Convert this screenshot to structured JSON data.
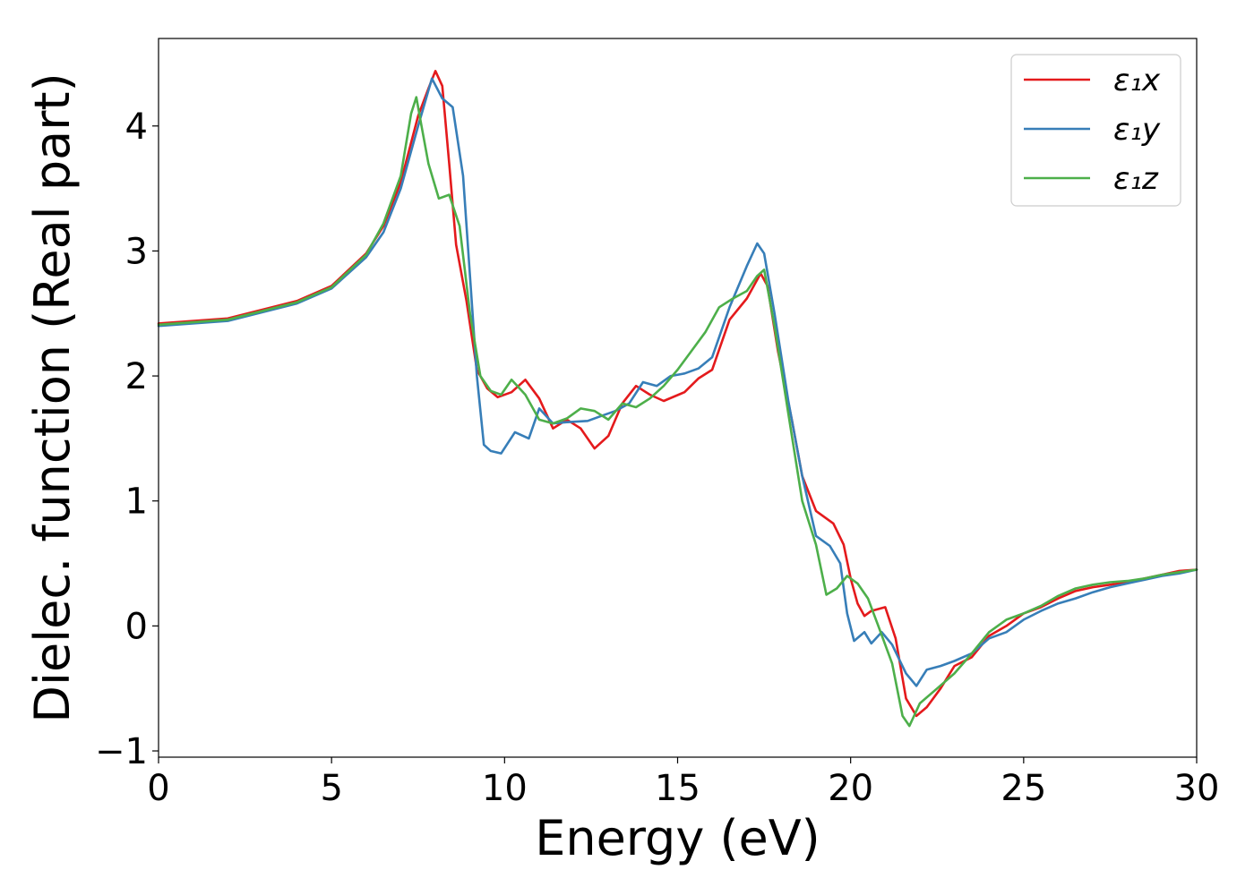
{
  "chart_data": {
    "type": "line",
    "title": "",
    "xlabel": "Energy (eV)",
    "ylabel": "Dielec. function (Real part)",
    "xlim": [
      0,
      30
    ],
    "ylim": [
      -1.05,
      4.7
    ],
    "xticks": [
      0,
      5,
      10,
      15,
      20,
      25,
      30
    ],
    "xtick_labels": [
      "0",
      "5",
      "10",
      "15",
      "20",
      "25",
      "30"
    ],
    "yticks": [
      -1,
      0,
      1,
      2,
      3,
      4
    ],
    "ytick_labels": [
      "−1",
      "0",
      "1",
      "2",
      "3",
      "4"
    ],
    "grid": false,
    "legend_position": "top-right",
    "series": [
      {
        "name": "ε₁x",
        "color": "#e41a1c",
        "points": [
          [
            0,
            2.42
          ],
          [
            2,
            2.46
          ],
          [
            4,
            2.6
          ],
          [
            5,
            2.72
          ],
          [
            6,
            2.98
          ],
          [
            6.5,
            3.2
          ],
          [
            7,
            3.55
          ],
          [
            7.5,
            4.08
          ],
          [
            7.8,
            4.3
          ],
          [
            8.0,
            4.44
          ],
          [
            8.2,
            4.32
          ],
          [
            8.4,
            3.7
          ],
          [
            8.6,
            3.05
          ],
          [
            8.9,
            2.6
          ],
          [
            9.2,
            2.05
          ],
          [
            9.5,
            1.9
          ],
          [
            9.8,
            1.83
          ],
          [
            10.2,
            1.87
          ],
          [
            10.6,
            1.97
          ],
          [
            11,
            1.82
          ],
          [
            11.4,
            1.58
          ],
          [
            11.8,
            1.65
          ],
          [
            12.2,
            1.58
          ],
          [
            12.6,
            1.42
          ],
          [
            13,
            1.52
          ],
          [
            13.4,
            1.78
          ],
          [
            13.8,
            1.92
          ],
          [
            14.2,
            1.85
          ],
          [
            14.6,
            1.8
          ],
          [
            15.2,
            1.87
          ],
          [
            15.6,
            1.98
          ],
          [
            16,
            2.05
          ],
          [
            16.5,
            2.45
          ],
          [
            17,
            2.62
          ],
          [
            17.4,
            2.82
          ],
          [
            17.6,
            2.72
          ],
          [
            17.9,
            2.2
          ],
          [
            18.3,
            1.65
          ],
          [
            18.6,
            1.2
          ],
          [
            19,
            0.92
          ],
          [
            19.5,
            0.82
          ],
          [
            19.8,
            0.65
          ],
          [
            20,
            0.38
          ],
          [
            20.2,
            0.18
          ],
          [
            20.4,
            0.08
          ],
          [
            20.6,
            0.12
          ],
          [
            21,
            0.15
          ],
          [
            21.3,
            -0.1
          ],
          [
            21.6,
            -0.58
          ],
          [
            21.9,
            -0.72
          ],
          [
            22.2,
            -0.65
          ],
          [
            22.6,
            -0.5
          ],
          [
            23,
            -0.32
          ],
          [
            23.5,
            -0.25
          ],
          [
            24,
            -0.08
          ],
          [
            24.5,
            0.0
          ],
          [
            25,
            0.1
          ],
          [
            25.5,
            0.15
          ],
          [
            26,
            0.22
          ],
          [
            26.5,
            0.28
          ],
          [
            27,
            0.31
          ],
          [
            27.5,
            0.33
          ],
          [
            28,
            0.35
          ],
          [
            28.5,
            0.38
          ],
          [
            29,
            0.41
          ],
          [
            29.5,
            0.44
          ],
          [
            30,
            0.45
          ]
        ]
      },
      {
        "name": "ε₁y",
        "color": "#377eb8",
        "points": [
          [
            0,
            2.4
          ],
          [
            2,
            2.44
          ],
          [
            4,
            2.58
          ],
          [
            5,
            2.7
          ],
          [
            6,
            2.95
          ],
          [
            6.5,
            3.15
          ],
          [
            7,
            3.5
          ],
          [
            7.5,
            4.0
          ],
          [
            7.9,
            4.38
          ],
          [
            8.2,
            4.22
          ],
          [
            8.5,
            4.15
          ],
          [
            8.8,
            3.6
          ],
          [
            9.0,
            2.8
          ],
          [
            9.2,
            2.0
          ],
          [
            9.4,
            1.45
          ],
          [
            9.6,
            1.4
          ],
          [
            9.9,
            1.38
          ],
          [
            10.3,
            1.55
          ],
          [
            10.7,
            1.5
          ],
          [
            11,
            1.74
          ],
          [
            11.4,
            1.62
          ],
          [
            11.8,
            1.63
          ],
          [
            12.4,
            1.64
          ],
          [
            12.8,
            1.68
          ],
          [
            13.2,
            1.72
          ],
          [
            13.6,
            1.78
          ],
          [
            14,
            1.95
          ],
          [
            14.4,
            1.92
          ],
          [
            14.8,
            2.0
          ],
          [
            15.2,
            2.02
          ],
          [
            15.6,
            2.06
          ],
          [
            16,
            2.15
          ],
          [
            16.5,
            2.55
          ],
          [
            17,
            2.88
          ],
          [
            17.3,
            3.06
          ],
          [
            17.5,
            2.98
          ],
          [
            17.8,
            2.5
          ],
          [
            18.2,
            1.8
          ],
          [
            18.6,
            1.2
          ],
          [
            19,
            0.72
          ],
          [
            19.4,
            0.64
          ],
          [
            19.7,
            0.5
          ],
          [
            19.9,
            0.1
          ],
          [
            20.1,
            -0.12
          ],
          [
            20.4,
            -0.05
          ],
          [
            20.6,
            -0.14
          ],
          [
            20.9,
            -0.05
          ],
          [
            21.2,
            -0.15
          ],
          [
            21.6,
            -0.38
          ],
          [
            21.9,
            -0.48
          ],
          [
            22.2,
            -0.35
          ],
          [
            22.6,
            -0.32
          ],
          [
            23,
            -0.28
          ],
          [
            23.5,
            -0.22
          ],
          [
            24,
            -0.1
          ],
          [
            24.5,
            -0.05
          ],
          [
            25,
            0.05
          ],
          [
            25.5,
            0.12
          ],
          [
            26,
            0.18
          ],
          [
            26.5,
            0.22
          ],
          [
            27,
            0.27
          ],
          [
            27.5,
            0.31
          ],
          [
            28,
            0.34
          ],
          [
            28.5,
            0.37
          ],
          [
            29,
            0.4
          ],
          [
            29.5,
            0.42
          ],
          [
            30,
            0.45
          ]
        ]
      },
      {
        "name": "ε₁z",
        "color": "#4daf4a",
        "points": [
          [
            0,
            2.41
          ],
          [
            2,
            2.45
          ],
          [
            4,
            2.59
          ],
          [
            5,
            2.71
          ],
          [
            6,
            2.97
          ],
          [
            6.5,
            3.22
          ],
          [
            7,
            3.6
          ],
          [
            7.3,
            4.1
          ],
          [
            7.45,
            4.23
          ],
          [
            7.6,
            4.0
          ],
          [
            7.8,
            3.7
          ],
          [
            8.1,
            3.42
          ],
          [
            8.4,
            3.45
          ],
          [
            8.7,
            3.2
          ],
          [
            9.0,
            2.5
          ],
          [
            9.3,
            2.0
          ],
          [
            9.6,
            1.88
          ],
          [
            9.9,
            1.85
          ],
          [
            10.2,
            1.97
          ],
          [
            10.6,
            1.85
          ],
          [
            11,
            1.65
          ],
          [
            11.4,
            1.62
          ],
          [
            11.8,
            1.66
          ],
          [
            12.2,
            1.74
          ],
          [
            12.6,
            1.72
          ],
          [
            13,
            1.65
          ],
          [
            13.4,
            1.78
          ],
          [
            13.8,
            1.75
          ],
          [
            14.2,
            1.82
          ],
          [
            14.6,
            1.92
          ],
          [
            15,
            2.05
          ],
          [
            15.4,
            2.2
          ],
          [
            15.8,
            2.35
          ],
          [
            16.2,
            2.55
          ],
          [
            16.6,
            2.62
          ],
          [
            17,
            2.68
          ],
          [
            17.3,
            2.8
          ],
          [
            17.5,
            2.85
          ],
          [
            17.8,
            2.4
          ],
          [
            18.2,
            1.7
          ],
          [
            18.6,
            1.0
          ],
          [
            19,
            0.65
          ],
          [
            19.3,
            0.25
          ],
          [
            19.6,
            0.3
          ],
          [
            19.9,
            0.4
          ],
          [
            20.2,
            0.34
          ],
          [
            20.5,
            0.22
          ],
          [
            20.8,
            0.0
          ],
          [
            21.2,
            -0.3
          ],
          [
            21.5,
            -0.72
          ],
          [
            21.7,
            -0.8
          ],
          [
            22,
            -0.62
          ],
          [
            22.5,
            -0.5
          ],
          [
            23,
            -0.38
          ],
          [
            23.5,
            -0.22
          ],
          [
            24,
            -0.05
          ],
          [
            24.5,
            0.05
          ],
          [
            25,
            0.1
          ],
          [
            25.5,
            0.16
          ],
          [
            26,
            0.24
          ],
          [
            26.5,
            0.3
          ],
          [
            27,
            0.33
          ],
          [
            27.5,
            0.35
          ],
          [
            28,
            0.36
          ],
          [
            28.5,
            0.38
          ],
          [
            29,
            0.41
          ],
          [
            29.5,
            0.43
          ],
          [
            30,
            0.45
          ]
        ]
      }
    ]
  }
}
